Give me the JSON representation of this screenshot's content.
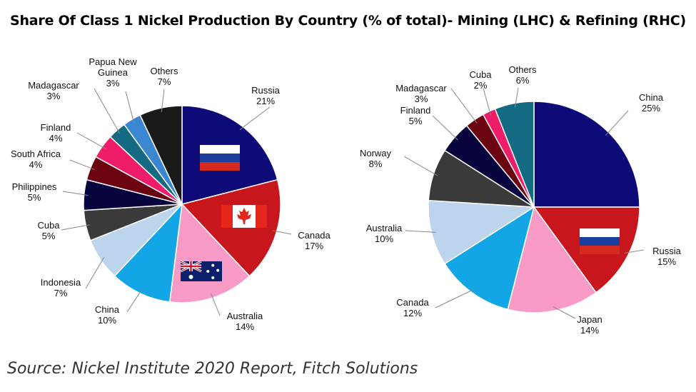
{
  "title": "Share Of Class 1 Nickel Production By Country (% of total)- Mining (LHC) & Refining (RHC)",
  "source": "Source: Nickel Institute 2020 Report, Fitch Solutions",
  "chart_data": [
    {
      "type": "pie",
      "title": "",
      "labels": [
        "Russia",
        "Canada",
        "Australia",
        "China",
        "Indonesia",
        "Cuba",
        "Philippines",
        "South Africa",
        "Finland",
        "Madagascar",
        "Papua New Guinea",
        "Others"
      ],
      "label_lines": [
        [
          "Russia",
          "21%"
        ],
        [
          "Canada",
          "17%"
        ],
        [
          "Australia",
          "14%"
        ],
        [
          "China",
          "10%"
        ],
        [
          "Indonesia",
          "7%"
        ],
        [
          "Cuba",
          "5%"
        ],
        [
          "Philippines",
          "5%"
        ],
        [
          "South Africa",
          "4%"
        ],
        [
          "Finland",
          "4%"
        ],
        [
          "Madagascar",
          "3%"
        ],
        [
          "Papua New",
          "Guinea",
          "3%"
        ],
        [
          "Others",
          "7%"
        ]
      ],
      "values": [
        21,
        17,
        14,
        10,
        7,
        5,
        5,
        4,
        4,
        3,
        3,
        7
      ],
      "colors": [
        "#0e0b78",
        "#c8161d",
        "#f79ac6",
        "#12a6e6",
        "#bcd5ec",
        "#3a3a3a",
        "#08053e",
        "#6b0410",
        "#ef1c6a",
        "#136a82",
        "#3b86d0",
        "#1a1a1a"
      ],
      "flags": {
        "Russia": "russia",
        "Canada": "canada",
        "Australia": "australia"
      }
    },
    {
      "type": "pie",
      "title": "",
      "labels": [
        "China",
        "Russia",
        "Japan",
        "Canada",
        "Australia",
        "Norway",
        "Finland",
        "Madagascar",
        "Cuba",
        "Others"
      ],
      "label_lines": [
        [
          "China",
          "25%"
        ],
        [
          "Russia",
          "15%"
        ],
        [
          "Japan",
          "14%"
        ],
        [
          "Canada",
          "12%"
        ],
        [
          "Australia",
          "10%"
        ],
        [
          "Norway",
          "8%"
        ],
        [
          "Finland",
          "5%"
        ],
        [
          "Madagascar",
          "3%"
        ],
        [
          "Cuba",
          "2%"
        ],
        [
          "Others",
          "6%"
        ]
      ],
      "values": [
        25,
        15,
        14,
        12,
        10,
        8,
        5,
        3,
        2,
        6
      ],
      "colors": [
        "#0e0b78",
        "#c8161d",
        "#f79ac6",
        "#12a6e6",
        "#bcd5ec",
        "#3a3a3a",
        "#08053e",
        "#6b0410",
        "#ef1c6a",
        "#136a82"
      ],
      "flags": {
        "Russia": "russia"
      }
    }
  ]
}
